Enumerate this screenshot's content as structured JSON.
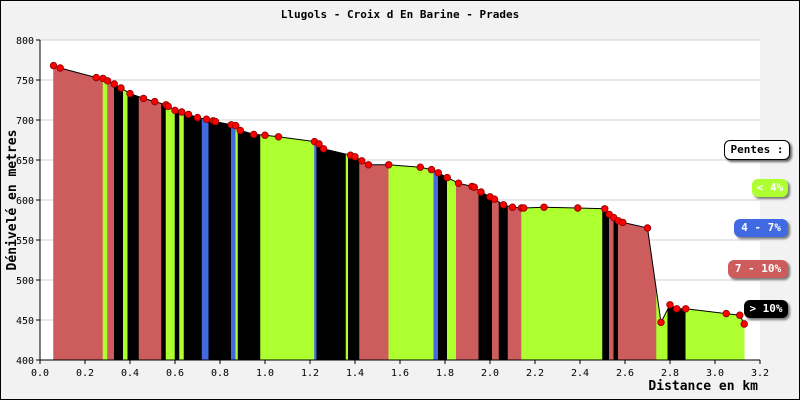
{
  "chart_data": {
    "type": "area",
    "title": "Llugols - Croix d En Barine - Prades",
    "xlabel": "Distance en km",
    "ylabel": "Dénivelé en metres",
    "xlim": [
      0,
      3.2
    ],
    "ylim": [
      400,
      800
    ],
    "xticks": [
      "0.0",
      "0.2",
      "0.4",
      "0.6",
      "0.8",
      "1.0",
      "1.2",
      "1.4",
      "1.6",
      "1.8",
      "2.0",
      "2.2",
      "2.4",
      "2.6",
      "2.8",
      "3.0",
      "3.2"
    ],
    "yticks": [
      "400",
      "450",
      "500",
      "550",
      "600",
      "650",
      "700",
      "750",
      "800"
    ],
    "grid": true,
    "colors": {
      "lt4": "#adff2f",
      "4to7": "#4169e1",
      "7to10": "#cd5c5c",
      "gt10": "#000000",
      "point": "#ff0000"
    },
    "legend": {
      "title": "Pentes :",
      "items": [
        {
          "label": "< 4%",
          "color": "#adff2f",
          "text_color": "#ffffff"
        },
        {
          "label": "4 - 7%",
          "color": "#4169e1",
          "text_color": "#ffffff"
        },
        {
          "label": "7 - 10%",
          "color": "#cd5c5c",
          "text_color": "#ffffff"
        },
        {
          "label": "> 10%",
          "color": "#000000",
          "text_color": "#ffffff"
        }
      ]
    },
    "points": [
      [
        0.06,
        768
      ],
      [
        0.09,
        765
      ],
      [
        0.25,
        753
      ],
      [
        0.28,
        752
      ],
      [
        0.3,
        749
      ],
      [
        0.33,
        745
      ],
      [
        0.36,
        740
      ],
      [
        0.4,
        733
      ],
      [
        0.46,
        727
      ],
      [
        0.51,
        723
      ],
      [
        0.56,
        719
      ],
      [
        0.57,
        717
      ],
      [
        0.6,
        712
      ],
      [
        0.63,
        710
      ],
      [
        0.66,
        707
      ],
      [
        0.7,
        703
      ],
      [
        0.74,
        701
      ],
      [
        0.77,
        699
      ],
      [
        0.78,
        698
      ],
      [
        0.85,
        694
      ],
      [
        0.87,
        693
      ],
      [
        0.89,
        687
      ],
      [
        0.95,
        682
      ],
      [
        1.0,
        681
      ],
      [
        1.06,
        679
      ],
      [
        1.22,
        673
      ],
      [
        1.24,
        670
      ],
      [
        1.26,
        664
      ],
      [
        1.38,
        656
      ],
      [
        1.4,
        654
      ],
      [
        1.43,
        649
      ],
      [
        1.46,
        644
      ],
      [
        1.55,
        644
      ],
      [
        1.69,
        641
      ],
      [
        1.74,
        638
      ],
      [
        1.77,
        634
      ],
      [
        1.81,
        628
      ],
      [
        1.86,
        621
      ],
      [
        1.92,
        617
      ],
      [
        1.93,
        616
      ],
      [
        1.96,
        610
      ],
      [
        2.0,
        604
      ],
      [
        2.02,
        601
      ],
      [
        2.06,
        594
      ],
      [
        2.1,
        591
      ],
      [
        2.14,
        590
      ],
      [
        2.15,
        590
      ],
      [
        2.24,
        591
      ],
      [
        2.39,
        590
      ],
      [
        2.51,
        589
      ],
      [
        2.53,
        582
      ],
      [
        2.55,
        578
      ],
      [
        2.57,
        574
      ],
      [
        2.59,
        572
      ],
      [
        2.7,
        565
      ],
      [
        2.76,
        447
      ],
      [
        2.8,
        469
      ],
      [
        2.83,
        464
      ],
      [
        2.87,
        464
      ],
      [
        3.05,
        458
      ],
      [
        3.11,
        456
      ],
      [
        3.13,
        445
      ]
    ],
    "segments": [
      [
        0.06,
        0.28,
        "7to10"
      ],
      [
        0.28,
        0.3,
        "lt4"
      ],
      [
        0.3,
        0.33,
        "7to10"
      ],
      [
        0.33,
        0.37,
        "gt10"
      ],
      [
        0.37,
        0.39,
        "lt4"
      ],
      [
        0.39,
        0.44,
        "gt10"
      ],
      [
        0.44,
        0.54,
        "7to10"
      ],
      [
        0.54,
        0.56,
        "gt10"
      ],
      [
        0.56,
        0.6,
        "lt4"
      ],
      [
        0.6,
        0.62,
        "gt10"
      ],
      [
        0.62,
        0.64,
        "lt4"
      ],
      [
        0.64,
        0.72,
        "gt10"
      ],
      [
        0.72,
        0.75,
        "4to7"
      ],
      [
        0.75,
        0.85,
        "gt10"
      ],
      [
        0.85,
        0.87,
        "4to7"
      ],
      [
        0.87,
        0.88,
        "lt4"
      ],
      [
        0.88,
        0.98,
        "gt10"
      ],
      [
        0.98,
        1.22,
        "lt4"
      ],
      [
        1.22,
        1.23,
        "4to7"
      ],
      [
        1.23,
        1.36,
        "gt10"
      ],
      [
        1.36,
        1.37,
        "lt4"
      ],
      [
        1.37,
        1.42,
        "gt10"
      ],
      [
        1.42,
        1.55,
        "7to10"
      ],
      [
        1.55,
        1.75,
        "lt4"
      ],
      [
        1.75,
        1.77,
        "4to7"
      ],
      [
        1.77,
        1.81,
        "gt10"
      ],
      [
        1.81,
        1.85,
        "lt4"
      ],
      [
        1.85,
        1.95,
        "7to10"
      ],
      [
        1.95,
        2.01,
        "gt10"
      ],
      [
        2.01,
        2.04,
        "7to10"
      ],
      [
        2.04,
        2.08,
        "gt10"
      ],
      [
        2.08,
        2.14,
        "7to10"
      ],
      [
        2.14,
        2.5,
        "lt4"
      ],
      [
        2.5,
        2.53,
        "gt10"
      ],
      [
        2.53,
        2.55,
        "7to10"
      ],
      [
        2.55,
        2.57,
        "gt10"
      ],
      [
        2.57,
        2.74,
        "7to10"
      ],
      [
        2.74,
        2.79,
        "lt4"
      ],
      [
        2.79,
        2.87,
        "gt10"
      ],
      [
        2.87,
        3.13,
        "lt4"
      ]
    ]
  }
}
